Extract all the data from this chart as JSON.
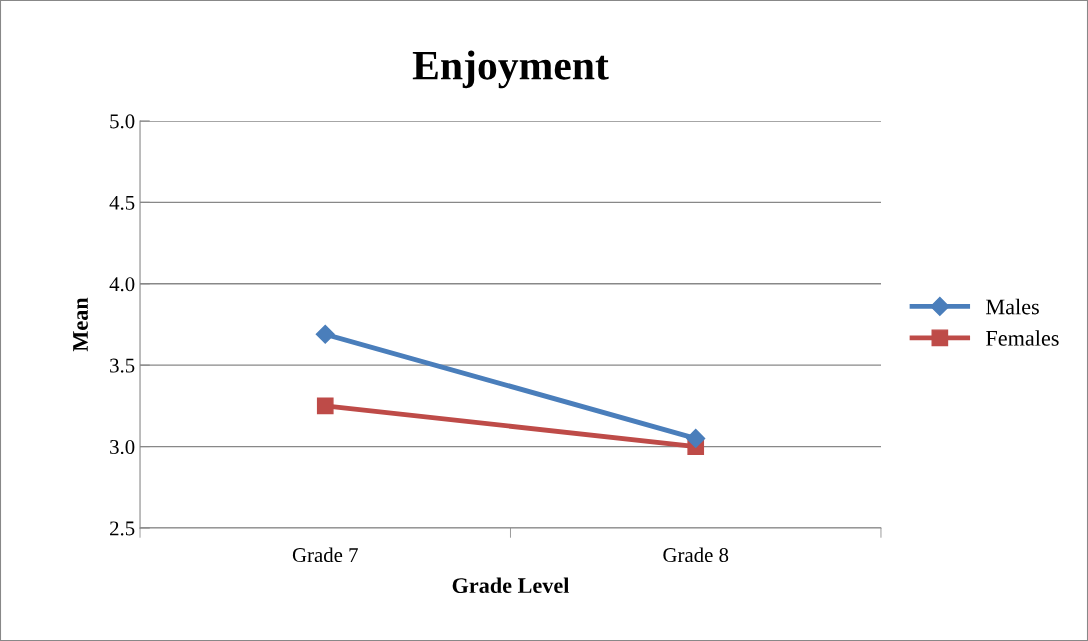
{
  "chart_data": {
    "type": "line",
    "title": "Enjoyment",
    "xlabel": "Grade Level",
    "ylabel": "Mean",
    "categories": [
      "Grade 7",
      "Grade 8"
    ],
    "series": [
      {
        "name": "Males",
        "color": "#4a7ebb",
        "values": [
          3.69,
          3.05
        ],
        "marker": "diamond"
      },
      {
        "name": "Females",
        "color": "#be4b48",
        "values": [
          3.25,
          3.0
        ],
        "marker": "square"
      }
    ],
    "ylim": [
      2.5,
      5.0
    ],
    "yticks": [
      {
        "value": 2.5,
        "label": "2.5"
      },
      {
        "value": 3.0,
        "label": "3.0"
      },
      {
        "value": 3.5,
        "label": "3.5"
      },
      {
        "value": 4.0,
        "label": "4.0"
      },
      {
        "value": 4.5,
        "label": "4.5"
      },
      {
        "value": 5.0,
        "label": "5.0"
      }
    ],
    "grid": "y",
    "legend": "right",
    "line_style": "solid"
  }
}
